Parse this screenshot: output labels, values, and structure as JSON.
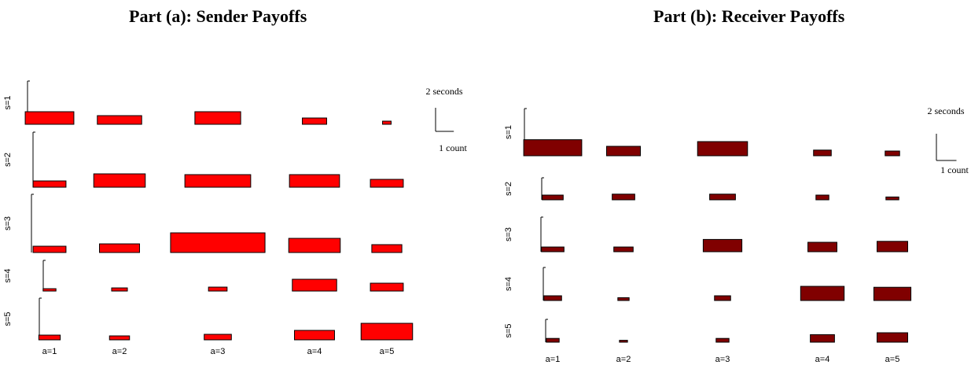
{
  "chart_data": [
    {
      "type": "bar",
      "title": "Part (a): Sender Payoffs",
      "color": "#ff0000",
      "rows": [
        "s=1",
        "s=2",
        "s=3",
        "s=4",
        "s=5"
      ],
      "columns": [
        "a=1",
        "a=2",
        "a=3",
        "a=4",
        "a=5"
      ],
      "scale": {
        "height_label": "2 seconds",
        "width_label": "1 count"
      },
      "cells": [
        [
          {
            "count": 3.4,
            "seconds": 1.6
          },
          {
            "count": 3.1,
            "seconds": 1.1
          },
          {
            "count": 3.2,
            "seconds": 1.6
          },
          {
            "count": 1.7,
            "seconds": 0.8
          },
          {
            "count": 0.6,
            "seconds": 0.4
          }
        ],
        [
          {
            "count": 2.3,
            "seconds": 0.8
          },
          {
            "count": 3.6,
            "seconds": 1.7
          },
          {
            "count": 4.6,
            "seconds": 1.6
          },
          {
            "count": 3.5,
            "seconds": 1.6
          },
          {
            "count": 2.3,
            "seconds": 1.0
          }
        ],
        [
          {
            "count": 2.3,
            "seconds": 0.8
          },
          {
            "count": 2.8,
            "seconds": 1.1
          },
          {
            "count": 6.6,
            "seconds": 2.5
          },
          {
            "count": 3.6,
            "seconds": 1.8
          },
          {
            "count": 2.1,
            "seconds": 1.0
          }
        ],
        [
          {
            "count": 0.9,
            "seconds": 0.3
          },
          {
            "count": 1.1,
            "seconds": 0.4
          },
          {
            "count": 1.3,
            "seconds": 0.5
          },
          {
            "count": 3.1,
            "seconds": 1.5
          },
          {
            "count": 2.3,
            "seconds": 1.0
          }
        ],
        [
          {
            "count": 1.5,
            "seconds": 0.6
          },
          {
            "count": 1.4,
            "seconds": 0.5
          },
          {
            "count": 1.9,
            "seconds": 0.7
          },
          {
            "count": 2.8,
            "seconds": 1.2
          },
          {
            "count": 3.6,
            "seconds": 2.1
          }
        ]
      ]
    },
    {
      "type": "bar",
      "title": "Part (b): Receiver Payoffs",
      "color": "#800000",
      "rows": [
        "s=1",
        "s=2",
        "s=3",
        "s=4",
        "s=5"
      ],
      "columns": [
        "a=1",
        "a=2",
        "a=3",
        "a=4",
        "a=5"
      ],
      "scale": {
        "height_label": "2 seconds",
        "width_label": "1 count"
      },
      "cells": [
        [
          {
            "count": 3.6,
            "seconds": 1.7
          },
          {
            "count": 2.1,
            "seconds": 1.0
          },
          {
            "count": 3.1,
            "seconds": 1.5
          },
          {
            "count": 1.1,
            "seconds": 0.6
          },
          {
            "count": 0.9,
            "seconds": 0.5
          }
        ],
        [
          {
            "count": 1.3,
            "seconds": 0.5
          },
          {
            "count": 1.4,
            "seconds": 0.6
          },
          {
            "count": 1.6,
            "seconds": 0.6
          },
          {
            "count": 0.8,
            "seconds": 0.5
          },
          {
            "count": 0.8,
            "seconds": 0.3
          }
        ],
        [
          {
            "count": 1.4,
            "seconds": 0.5
          },
          {
            "count": 1.2,
            "seconds": 0.5
          },
          {
            "count": 2.4,
            "seconds": 1.3
          },
          {
            "count": 1.8,
            "seconds": 1.0
          },
          {
            "count": 1.9,
            "seconds": 1.1
          }
        ],
        [
          {
            "count": 1.1,
            "seconds": 0.5
          },
          {
            "count": 0.7,
            "seconds": 0.3
          },
          {
            "count": 1.0,
            "seconds": 0.5
          },
          {
            "count": 2.7,
            "seconds": 1.5
          },
          {
            "count": 2.3,
            "seconds": 1.4
          }
        ],
        [
          {
            "count": 0.8,
            "seconds": 0.4
          },
          {
            "count": 0.5,
            "seconds": 0.2
          },
          {
            "count": 0.8,
            "seconds": 0.4
          },
          {
            "count": 1.5,
            "seconds": 0.8
          },
          {
            "count": 1.9,
            "seconds": 1.0
          }
        ]
      ]
    }
  ]
}
